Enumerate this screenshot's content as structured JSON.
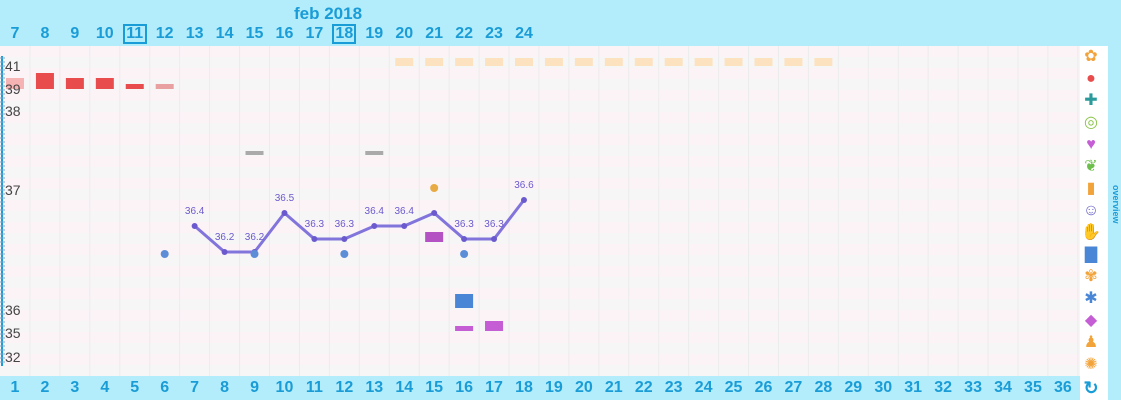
{
  "header": {
    "month": "feb 2018",
    "dates": [
      "7",
      "8",
      "9",
      "10",
      "11",
      "12",
      "13",
      "14",
      "15",
      "16",
      "17",
      "18",
      "19",
      "20",
      "21",
      "22",
      "23",
      "24"
    ],
    "boxed_dates": [
      "11",
      "18"
    ]
  },
  "cycle_days": [
    "1",
    "2",
    "3",
    "4",
    "5",
    "6",
    "7",
    "8",
    "9",
    "10",
    "11",
    "12",
    "13",
    "14",
    "15",
    "16",
    "17",
    "18",
    "19",
    "20",
    "21",
    "22",
    "23",
    "24",
    "25",
    "26",
    "27",
    "28",
    "29",
    "30",
    "31",
    "32",
    "33",
    "34",
    "35",
    "36"
  ],
  "y_axis": {
    "labels": [
      "41",
      "39",
      "38",
      "37",
      "36",
      "35",
      "32"
    ]
  },
  "sidebar": {
    "overview_label": "overview",
    "icons": [
      "sun-flower-icon",
      "drop-icon",
      "puzzle-icon",
      "rings-icon",
      "heart-icon",
      "leaf-icon",
      "bottle-icon",
      "smiley-icon",
      "hand-icon",
      "document-icon",
      "flower-check-icon",
      "snowflake-icon",
      "tag-icon",
      "person-icon",
      "sun-question-icon",
      "refresh-icon"
    ]
  },
  "colors": {
    "accent": "#1a9cd6",
    "temperature_line": "#8174db",
    "bleeding": "#e84c4c",
    "peach": "#fde2c0",
    "gray": "#aaaaaa",
    "magenta": "#c55dd4",
    "blue": "#4a86d6",
    "orange": "#e8aa44"
  },
  "chart_data": {
    "type": "line",
    "x_label": "",
    "y_label": "",
    "series": [
      {
        "x": [
          7,
          8,
          9,
          10,
          11,
          12,
          13,
          14,
          15,
          16,
          17,
          18
        ],
        "values": [
          36.4,
          36.2,
          36.2,
          36.5,
          36.3,
          36.3,
          36.4,
          36.4,
          36.5,
          36.3,
          36.3,
          36.6
        ]
      }
    ],
    "point_labels": [
      "36.4",
      "36.2",
      "36.2",
      "36.5",
      "36.3",
      "36.3",
      "36.4",
      "36.4",
      "",
      "36.3",
      "36.3",
      "36.6"
    ],
    "isolated_points": [
      {
        "day": 6,
        "value": 36.5
      },
      {
        "day": 9,
        "value": 36.5
      },
      {
        "day": 12,
        "value": 36.5
      },
      {
        "day": 16,
        "value": 36.5
      }
    ],
    "orange_point": {
      "day": 15,
      "value": 37
    },
    "bleeding_days": [
      1,
      2,
      3,
      4,
      5,
      6
    ],
    "peach_days": [
      14,
      15,
      16,
      17,
      18,
      19,
      20,
      21,
      22,
      23,
      24,
      25,
      26,
      27,
      28
    ],
    "gray_marks": [
      9,
      13
    ],
    "blue_mark_day": 16,
    "magenta_marks": [
      16,
      17
    ],
    "purple_mark_day": 15
  }
}
